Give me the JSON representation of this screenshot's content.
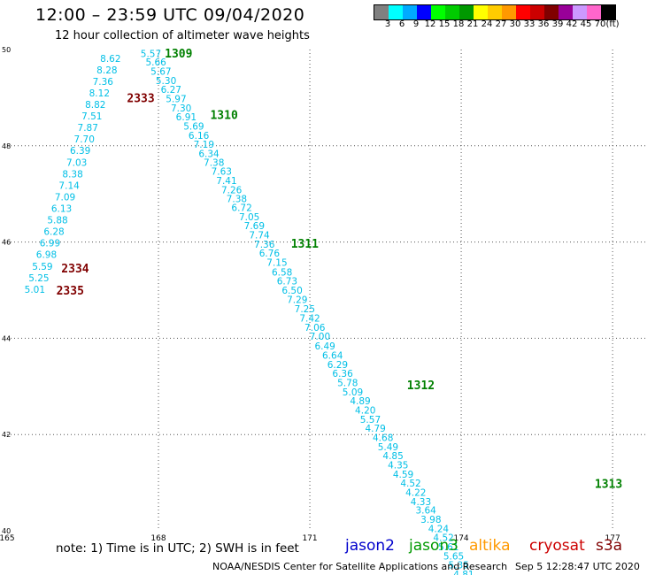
{
  "header": {
    "title": "12:00 – 23:59 UTC 09/04/2020",
    "subtitle": "12 hour collection of altimeter wave heights"
  },
  "color_legend": {
    "unit": "(ft)",
    "bins": [
      {
        "label": "3",
        "color": "#808080"
      },
      {
        "label": "6",
        "color": "#00ffff"
      },
      {
        "label": "9",
        "color": "#00aaff"
      },
      {
        "label": "12",
        "color": "#0000ff"
      },
      {
        "label": "15",
        "color": "#00ff00"
      },
      {
        "label": "18",
        "color": "#00cc00"
      },
      {
        "label": "21",
        "color": "#009900"
      },
      {
        "label": "24",
        "color": "#ffff00"
      },
      {
        "label": "27",
        "color": "#ffcc00"
      },
      {
        "label": "30",
        "color": "#ff9900"
      },
      {
        "label": "33",
        "color": "#ff0000"
      },
      {
        "label": "36",
        "color": "#cc0000"
      },
      {
        "label": "39",
        "color": "#800000"
      },
      {
        "label": "42",
        "color": "#990099"
      },
      {
        "label": "45",
        "color": "#cc99ff"
      },
      {
        "label": "70",
        "color": "#ff66cc"
      },
      {
        "label": "",
        "color": "#000000"
      }
    ]
  },
  "chart_data": {
    "type": "scatter",
    "title": "12:00 – 23:59 UTC 09/04/2020",
    "subtitle": "12 hour collection of altimeter wave heights",
    "xlim": [
      165,
      177.7
    ],
    "ylim": [
      40,
      50
    ],
    "x_ticks": [
      165,
      168,
      171,
      174,
      177
    ],
    "x_tick_labels": [
      "165",
      "168",
      "171",
      "174",
      "177"
    ],
    "y_ticks": [
      40,
      42,
      44,
      46,
      48,
      50
    ],
    "y_tick_labels": [
      "40",
      "42",
      "44",
      "46",
      "48",
      "50"
    ],
    "grid": true,
    "point_color": "#00bfe6",
    "series": [
      {
        "points": [
          {
            "x": 167.85,
            "y": 49.92,
            "v": "5.57"
          },
          {
            "x": 167.95,
            "y": 49.74,
            "v": "5.66"
          },
          {
            "x": 168.05,
            "y": 49.55,
            "v": "5.67"
          },
          {
            "x": 168.15,
            "y": 49.36,
            "v": "5.30"
          },
          {
            "x": 168.25,
            "y": 49.17,
            "v": "6.27"
          },
          {
            "x": 168.35,
            "y": 48.98,
            "v": "5.97"
          },
          {
            "x": 168.45,
            "y": 48.79,
            "v": "7.30"
          },
          {
            "x": 168.55,
            "y": 48.6,
            "v": "6.91"
          },
          {
            "x": 168.7,
            "y": 48.41,
            "v": "5.69"
          },
          {
            "x": 168.8,
            "y": 48.22,
            "v": "6.16"
          },
          {
            "x": 168.9,
            "y": 48.03,
            "v": "7.19"
          },
          {
            "x": 169.0,
            "y": 47.84,
            "v": "6.34"
          },
          {
            "x": 169.1,
            "y": 47.66,
            "v": "7.38"
          },
          {
            "x": 169.25,
            "y": 47.47,
            "v": "7.63"
          },
          {
            "x": 169.35,
            "y": 47.28,
            "v": "7.41"
          },
          {
            "x": 169.45,
            "y": 47.09,
            "v": "7.26"
          },
          {
            "x": 169.55,
            "y": 46.9,
            "v": "7.38"
          },
          {
            "x": 169.65,
            "y": 46.72,
            "v": "6.72"
          },
          {
            "x": 169.8,
            "y": 46.53,
            "v": "7.05"
          },
          {
            "x": 169.9,
            "y": 46.34,
            "v": "7.69"
          },
          {
            "x": 170.0,
            "y": 46.15,
            "v": "7.74"
          },
          {
            "x": 170.1,
            "y": 45.96,
            "v": "7.36"
          },
          {
            "x": 170.2,
            "y": 45.77,
            "v": "6.76"
          },
          {
            "x": 170.35,
            "y": 45.58,
            "v": "7.15"
          },
          {
            "x": 170.45,
            "y": 45.38,
            "v": "6.58"
          },
          {
            "x": 170.55,
            "y": 45.19,
            "v": "6.73"
          },
          {
            "x": 170.65,
            "y": 45.0,
            "v": "6.50"
          },
          {
            "x": 170.75,
            "y": 44.81,
            "v": "7.29"
          },
          {
            "x": 170.9,
            "y": 44.61,
            "v": "7.25"
          },
          {
            "x": 171.0,
            "y": 44.42,
            "v": "7.42"
          },
          {
            "x": 171.1,
            "y": 44.23,
            "v": "7.06"
          },
          {
            "x": 171.2,
            "y": 44.04,
            "v": "7.00"
          },
          {
            "x": 171.3,
            "y": 43.84,
            "v": "6.49"
          },
          {
            "x": 171.45,
            "y": 43.65,
            "v": "6.64"
          },
          {
            "x": 171.55,
            "y": 43.46,
            "v": "6.29"
          },
          {
            "x": 171.65,
            "y": 43.27,
            "v": "6.36"
          },
          {
            "x": 171.75,
            "y": 43.08,
            "v": "5.78"
          },
          {
            "x": 171.85,
            "y": 42.89,
            "v": "5.09"
          },
          {
            "x": 172.0,
            "y": 42.7,
            "v": "4.89"
          },
          {
            "x": 172.1,
            "y": 42.51,
            "v": "4.20"
          },
          {
            "x": 172.2,
            "y": 42.32,
            "v": "5.57"
          },
          {
            "x": 172.3,
            "y": 42.13,
            "v": "4.79"
          },
          {
            "x": 172.45,
            "y": 41.94,
            "v": "4.68"
          },
          {
            "x": 172.55,
            "y": 41.75,
            "v": "5.49"
          },
          {
            "x": 172.65,
            "y": 41.56,
            "v": "4.85"
          },
          {
            "x": 172.75,
            "y": 41.37,
            "v": "4.35"
          },
          {
            "x": 172.85,
            "y": 41.18,
            "v": "4.59"
          },
          {
            "x": 173.0,
            "y": 40.99,
            "v": "4.52"
          },
          {
            "x": 173.1,
            "y": 40.8,
            "v": "4.22"
          },
          {
            "x": 173.2,
            "y": 40.61,
            "v": "4.33"
          },
          {
            "x": 173.3,
            "y": 40.43,
            "v": "3.64"
          },
          {
            "x": 173.4,
            "y": 40.24,
            "v": "3.98"
          },
          {
            "x": 173.55,
            "y": 40.05,
            "v": "4.24"
          },
          {
            "x": 173.65,
            "y": 39.86,
            "v": "4.52"
          },
          {
            "x": 173.75,
            "y": 39.67,
            "v": "5.61"
          },
          {
            "x": 173.85,
            "y": 39.48,
            "v": "5.65"
          },
          {
            "x": 173.95,
            "y": 39.29,
            "v": "5.35"
          },
          {
            "x": 174.05,
            "y": 39.1,
            "v": "4.81"
          }
        ]
      },
      {
        "points": [
          {
            "x": 167.05,
            "y": 49.82,
            "v": "8.62"
          },
          {
            "x": 166.98,
            "y": 49.58,
            "v": "8.28"
          },
          {
            "x": 166.9,
            "y": 49.34,
            "v": "7.36"
          },
          {
            "x": 166.83,
            "y": 49.1,
            "v": "8.12"
          },
          {
            "x": 166.75,
            "y": 48.86,
            "v": "8.82"
          },
          {
            "x": 166.68,
            "y": 48.62,
            "v": "7.51"
          },
          {
            "x": 166.6,
            "y": 48.38,
            "v": "7.87"
          },
          {
            "x": 166.53,
            "y": 48.14,
            "v": "7.70"
          },
          {
            "x": 166.45,
            "y": 47.9,
            "v": "6.39"
          },
          {
            "x": 166.38,
            "y": 47.66,
            "v": "7.03"
          },
          {
            "x": 166.3,
            "y": 47.42,
            "v": "8.38"
          },
          {
            "x": 166.23,
            "y": 47.18,
            "v": "7.14"
          },
          {
            "x": 166.15,
            "y": 46.94,
            "v": "7.09"
          },
          {
            "x": 166.08,
            "y": 46.7,
            "v": "6.13"
          },
          {
            "x": 166.0,
            "y": 46.46,
            "v": "5.88"
          },
          {
            "x": 165.93,
            "y": 46.22,
            "v": "6.28"
          },
          {
            "x": 165.85,
            "y": 45.98,
            "v": "6.99"
          },
          {
            "x": 165.78,
            "y": 45.74,
            "v": "6.98"
          },
          {
            "x": 165.7,
            "y": 45.5,
            "v": "5.59"
          },
          {
            "x": 165.63,
            "y": 45.26,
            "v": "5.25"
          },
          {
            "x": 165.55,
            "y": 45.02,
            "v": "5.01"
          }
        ]
      }
    ],
    "annotations": [
      {
        "text": "1309",
        "x": 168.4,
        "y": 49.93,
        "color": "#008000"
      },
      {
        "text": "1310",
        "x": 169.3,
        "y": 48.65,
        "color": "#008000"
      },
      {
        "text": "1311",
        "x": 170.9,
        "y": 45.97,
        "color": "#008000"
      },
      {
        "text": "1312",
        "x": 173.2,
        "y": 43.03,
        "color": "#008000"
      },
      {
        "text": "1313",
        "x": 176.92,
        "y": 40.98,
        "color": "#008000"
      },
      {
        "text": "2333",
        "x": 167.65,
        "y": 49.0,
        "color": "#800000"
      },
      {
        "text": "2334",
        "x": 166.35,
        "y": 45.46,
        "color": "#800000"
      },
      {
        "text": "2335",
        "x": 166.25,
        "y": 45.0,
        "color": "#800000"
      }
    ]
  },
  "footer": {
    "note": "note:  1) Time is in UTC;  2) SWH is in feet",
    "satellites": [
      {
        "name": "jason2",
        "color": "#0000cc"
      },
      {
        "name": "jason3",
        "color": "#009900"
      },
      {
        "name": "altika",
        "color": "#ff9900"
      },
      {
        "name": "cryosat",
        "color": "#cc0000"
      },
      {
        "name": "s3a",
        "color": "#800000"
      }
    ],
    "credit": "NOAA/NESDIS Center for Satellite Applications and Research",
    "timestamp": "Sep  5 12:28:47 UTC 2020"
  }
}
